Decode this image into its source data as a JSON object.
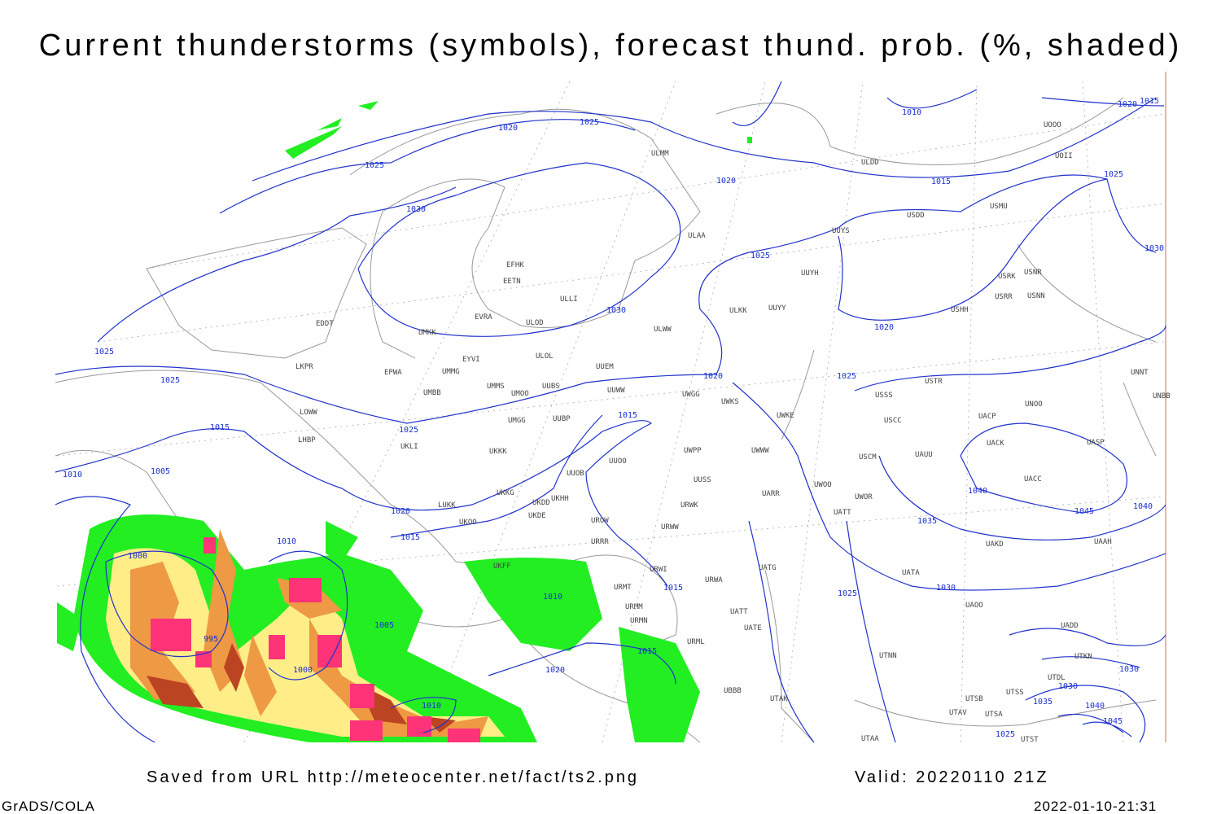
{
  "header": {
    "title": "Current thunderstorms (symbols), forecast thund. prob. (%, shaded)"
  },
  "footer": {
    "source": "Saved from URL http://meteocenter.net/fact/ts2.png",
    "valid": "Valid: 20220110 21Z",
    "software": "GrADS/COLA",
    "timestamp": "2022-01-10-21:31"
  },
  "map": {
    "stations": [
      "ULDD",
      "USDD",
      "USMU",
      "ULAA",
      "ULMM",
      "UUYS",
      "EFHK",
      "EETN",
      "ULLI",
      "UUYH",
      "ULKK",
      "UUYY",
      "EVRA",
      "ULOD",
      "EDDT",
      "UMKK",
      "ULWW",
      "ULOL",
      "EYVI",
      "UUEM",
      "EPWA",
      "UMMG",
      "LKPR",
      "UMMS",
      "UUBS",
      "UUWW",
      "UMBB",
      "UMOO",
      "UWGG",
      "UWKS",
      "LOWW",
      "UMGG",
      "UUBP",
      "LHBP",
      "UKLI",
      "UKKK",
      "UUOO",
      "UWPP",
      "UWWW",
      "UWKE",
      "UUOB",
      "UUSS",
      "UARR",
      "LUKK",
      "UKKG",
      "UKDD",
      "UKHH",
      "UKOO",
      "UKDE",
      "UROW",
      "URWW",
      "URWK",
      "URRR",
      "UKFF",
      "URMT",
      "URWI",
      "URWA",
      "UATG",
      "URMM",
      "URMN",
      "UATT",
      "UATE",
      "URML",
      "UBBB",
      "UTAK",
      "UTAA",
      "USSS",
      "USTR",
      "USCC",
      "UNOO",
      "UACK",
      "UASP",
      "USCM",
      "UAUU",
      "UACP",
      "UACC",
      "UWOO",
      "UWOR",
      "UATT",
      "UAKD",
      "UAAH",
      "UATA",
      "UAOO",
      "UADD",
      "UTNN",
      "USHH",
      "USRK",
      "USRR",
      "USNR",
      "USNN",
      "UOOO",
      "UOII",
      "UNNT",
      "UNBB",
      "UTDL",
      "UTKN",
      "UTSS",
      "UTSB",
      "UTAV",
      "UTSA",
      "UTST"
    ],
    "isobar_labels": [
      "1025",
      "1020",
      "1025",
      "1030",
      "1010",
      "1020",
      "1015",
      "1020",
      "1015",
      "1025",
      "1025",
      "1030",
      "1020",
      "1030",
      "1025",
      "1025",
      "1020",
      "1025",
      "1025",
      "1015",
      "1015",
      "1010",
      "1005",
      "1040",
      "1045",
      "1040",
      "1035",
      "1020",
      "1015",
      "1010",
      "1000",
      "1015",
      "1030",
      "1025",
      "1010",
      "995",
      "1005",
      "1015",
      "1000",
      "1020",
      "1010",
      "1030",
      "1030",
      "1035",
      "1040",
      "1045",
      "1025"
    ]
  }
}
